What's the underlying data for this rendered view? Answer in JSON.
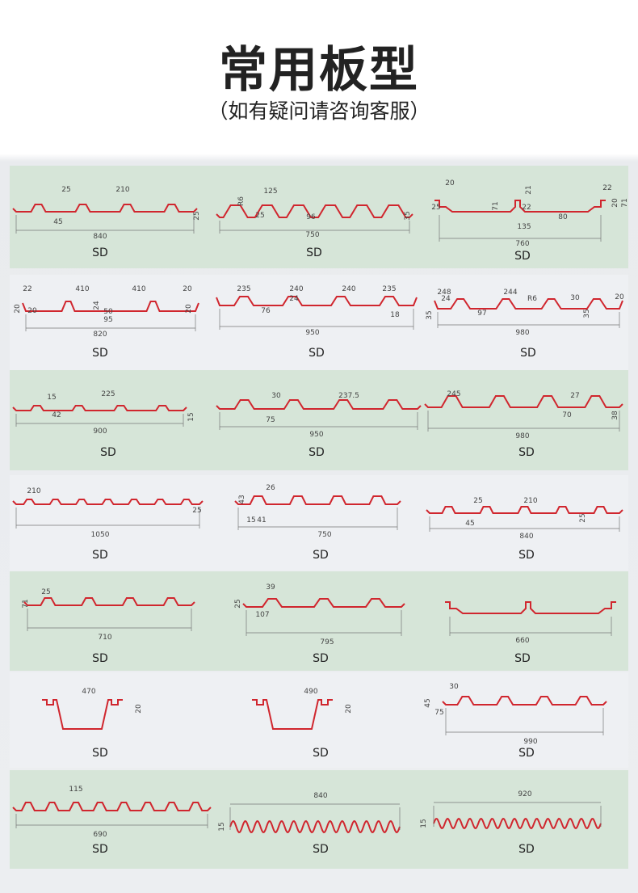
{
  "header": {
    "title": "常用板型",
    "subtitle": "（如有疑问请咨询客服）"
  },
  "colors": {
    "profile_line": "#d0262e",
    "band_green": "#d6e5d8",
    "band_white": "#eef0f3"
  },
  "items": [
    {
      "label": "SD",
      "dims": [
        "25",
        "210",
        "45",
        "840",
        "25"
      ]
    },
    {
      "label": "SD",
      "dims": [
        "R6",
        "125",
        "25",
        "96",
        "750",
        "35"
      ]
    },
    {
      "label": "SD",
      "dims": [
        "20",
        "25",
        "71",
        "21",
        "22",
        "135",
        "80",
        "22",
        "20",
        "71",
        "760"
      ]
    },
    {
      "label": "SD",
      "dims": [
        "22",
        "410",
        "410",
        "20",
        "20",
        "20",
        "24",
        "50",
        "95",
        "820",
        "20"
      ]
    },
    {
      "label": "SD",
      "dims": [
        "235",
        "240",
        "240",
        "235",
        "24",
        "76",
        "950",
        "18"
      ]
    },
    {
      "label": "SD",
      "dims": [
        "248",
        "244",
        "R6",
        "30",
        "20",
        "24",
        "35",
        "97",
        "35",
        "980"
      ]
    },
    {
      "label": "SD",
      "dims": [
        "15",
        "225",
        "42",
        "900",
        "15"
      ]
    },
    {
      "label": "SD",
      "dims": [
        "30",
        "237.5",
        "75",
        "950"
      ]
    },
    {
      "label": "SD",
      "dims": [
        "245",
        "27",
        "70",
        "980",
        "38"
      ]
    },
    {
      "label": "SD",
      "dims": [
        "210",
        "1050",
        "25"
      ]
    },
    {
      "label": "SD",
      "dims": [
        "26",
        "43",
        "15",
        "41",
        "750"
      ]
    },
    {
      "label": "SD",
      "dims": [
        "25",
        "210",
        "45",
        "840",
        "25"
      ]
    },
    {
      "label": "SD",
      "dims": [
        "25",
        "71",
        "710"
      ]
    },
    {
      "label": "SD",
      "dims": [
        "39",
        "25",
        "107",
        "795"
      ]
    },
    {
      "label": "SD",
      "dims": [
        "660"
      ]
    },
    {
      "label": "SD",
      "dims": [
        "470",
        "20"
      ]
    },
    {
      "label": "SD",
      "dims": [
        "490",
        "20"
      ]
    },
    {
      "label": "SD",
      "dims": [
        "30",
        "45",
        "75",
        "990"
      ]
    },
    {
      "label": "SD",
      "dims": [
        "115",
        "690"
      ]
    },
    {
      "label": "SD",
      "dims": [
        "840",
        "15"
      ]
    },
    {
      "label": "SD",
      "dims": [
        "920",
        "15"
      ]
    }
  ]
}
